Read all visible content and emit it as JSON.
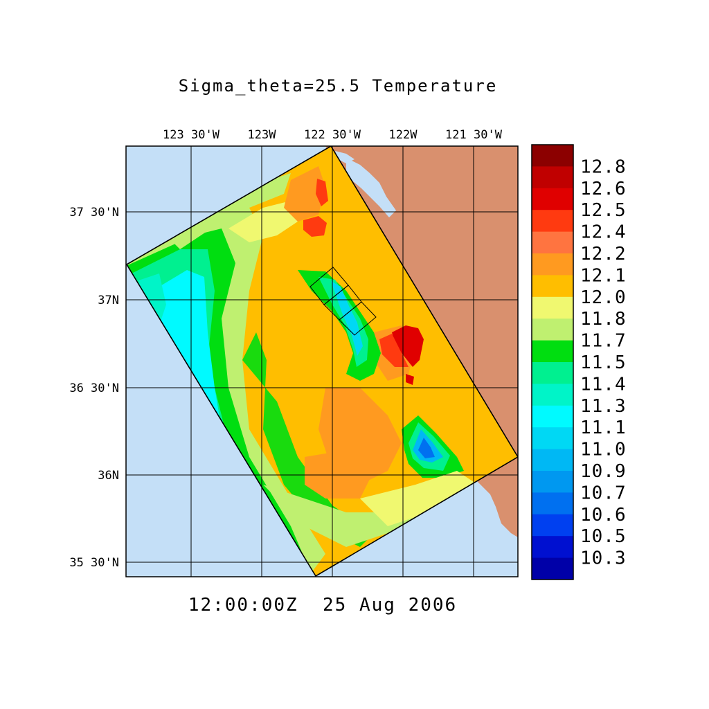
{
  "title": "Sigma_theta=25.5 Temperature",
  "timestamp": "12:00:00Z  25 Aug 2006",
  "colors": {
    "ocean_background": "#c4dff7",
    "land": "#d9906e",
    "frame": "#000000"
  },
  "map": {
    "lon_ticks": [
      "123 30'W",
      "123W",
      "122 30'W",
      "122W",
      "121 30'W"
    ],
    "lat_ticks": [
      "37 30'N",
      "37N",
      "36 30'N",
      "36N",
      "35 30'N"
    ]
  },
  "colorbar": {
    "labels": [
      "12.8",
      "12.6",
      "12.5",
      "12.4",
      "12.2",
      "12.1",
      "12.0",
      "11.8",
      "11.7",
      "11.5",
      "11.4",
      "11.3",
      "11.1",
      "11.0",
      "10.9",
      "10.7",
      "10.6",
      "10.5",
      "10.3"
    ],
    "colors": [
      "#8c0000",
      "#c00000",
      "#e00000",
      "#ff3a10",
      "#ff7440",
      "#ff9a20",
      "#ffbe00",
      "#f0f870",
      "#bff070",
      "#00de10",
      "#00f090",
      "#00f4c8",
      "#00faff",
      "#00d8f4",
      "#00b8f4",
      "#0098f0",
      "#0070f0",
      "#0040f0",
      "#0010d0",
      "#0000a8"
    ]
  }
}
